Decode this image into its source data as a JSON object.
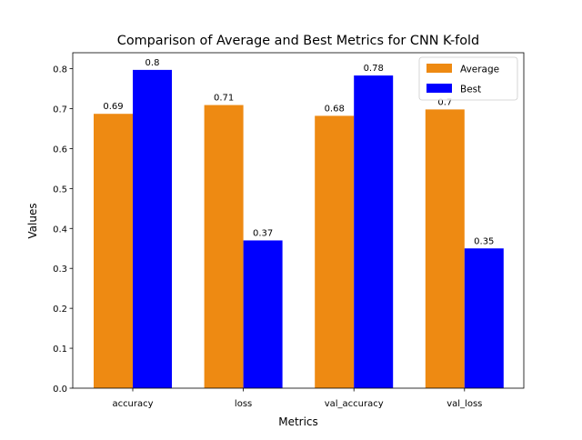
{
  "chart_data": {
    "type": "bar",
    "title": "Comparison of Average and Best Metrics for CNN K-fold",
    "xlabel": "Metrics",
    "ylabel": "Values",
    "categories": [
      "accuracy",
      "loss",
      "val_accuracy",
      "val_loss"
    ],
    "series": [
      {
        "name": "Average",
        "color": "#ee8a12",
        "values": [
          0.687,
          0.709,
          0.682,
          0.698
        ],
        "labels": [
          "0.69",
          "0.71",
          "0.68",
          "0.7"
        ]
      },
      {
        "name": "Best",
        "color": "#0000ff",
        "values": [
          0.797,
          0.37,
          0.783,
          0.35
        ],
        "labels": [
          "0.8",
          "0.37",
          "0.78",
          "0.35"
        ]
      }
    ],
    "ylim": [
      0,
      0.84
    ],
    "yticks": [
      0.0,
      0.1,
      0.2,
      0.3,
      0.4,
      0.5,
      0.6,
      0.7,
      0.8
    ],
    "ytick_labels": [
      "0.0",
      "0.1",
      "0.2",
      "0.3",
      "0.4",
      "0.5",
      "0.6",
      "0.7",
      "0.8"
    ],
    "grid": false,
    "legend_position": "top-right"
  }
}
